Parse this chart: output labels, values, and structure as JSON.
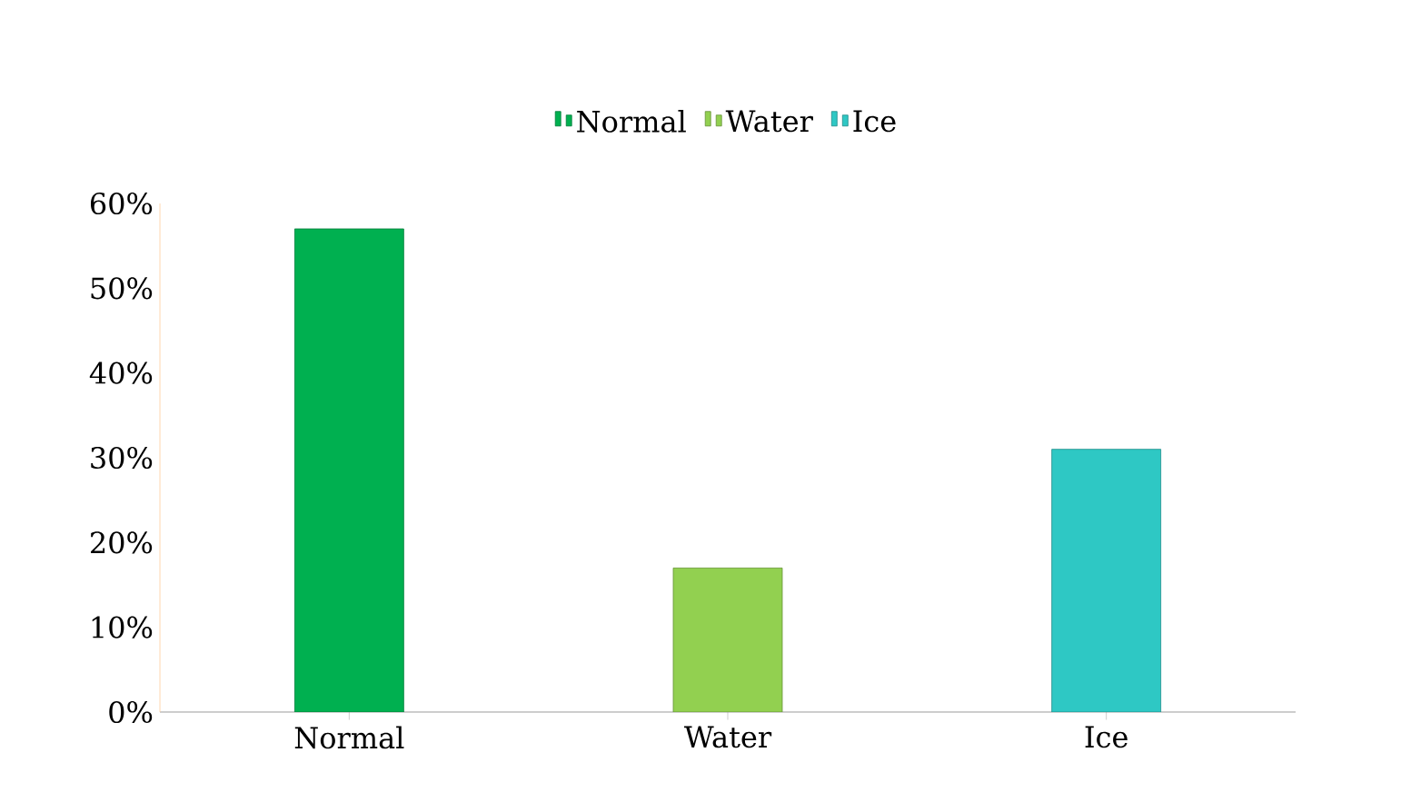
{
  "chart_data": {
    "type": "bar",
    "categories": [
      "Normal",
      "Water",
      "Ice"
    ],
    "series": [
      {
        "name": "Normal",
        "color": "#00b050",
        "values": [
          57,
          null,
          null
        ]
      },
      {
        "name": "Water",
        "color": "#92d050",
        "values": [
          null,
          17,
          null
        ]
      },
      {
        "name": "Ice",
        "color": "#2ec8c4",
        "values": [
          null,
          null,
          31
        ]
      }
    ],
    "ylim": [
      0,
      60
    ],
    "yticks": [
      {
        "value": 0,
        "label": "0%"
      },
      {
        "value": 10,
        "label": "10%"
      },
      {
        "value": 20,
        "label": "20%"
      },
      {
        "value": 30,
        "label": "30%"
      },
      {
        "value": 40,
        "label": "40%"
      },
      {
        "value": 50,
        "label": "50%"
      },
      {
        "value": 60,
        "label": "60%"
      }
    ],
    "grid": false,
    "legend": "top"
  }
}
